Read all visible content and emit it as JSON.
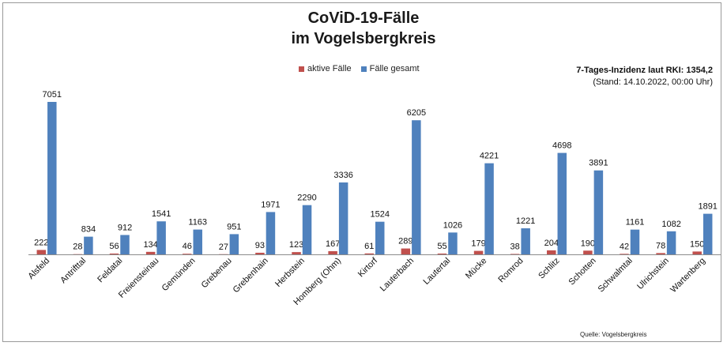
{
  "chart_data": {
    "type": "bar",
    "title": [
      "CoViD-19-Fälle",
      "im Vogelsbergkreis"
    ],
    "categories": [
      "Alsfeld",
      "Antrifttal",
      "Feldatal",
      "Freiensteinau",
      "Gemünden",
      "Grebenau",
      "Grebenhain",
      "Herbstein",
      "Homberg (Ohm)",
      "Kirtorf",
      "Lauterbach",
      "Lautertal",
      "Mücke",
      "Romrod",
      "Schlitz",
      "Schotten",
      "Schwalmtal",
      "Ulrichstein",
      "Wartenberg"
    ],
    "series": [
      {
        "name": "aktive Fälle",
        "color": "#c0504d",
        "values": [
          222,
          28,
          56,
          134,
          46,
          27,
          93,
          123,
          167,
          61,
          289,
          55,
          179,
          38,
          204,
          190,
          42,
          78,
          150
        ]
      },
      {
        "name": "Fälle gesamt",
        "color": "#4f81bd",
        "values": [
          7051,
          834,
          912,
          1541,
          1163,
          951,
          1971,
          2290,
          3336,
          1524,
          6205,
          1026,
          4221,
          1221,
          4698,
          3891,
          1161,
          1082,
          1891
        ]
      }
    ],
    "ylim": [
      0,
      7500
    ],
    "grid": false,
    "legend_position": "top-center"
  },
  "annotation": {
    "incidence": "7-Tages-Inzidenz laut RKI: 1354,2",
    "stand": "(Stand: 14.10.2022, 00:00 Uhr)"
  },
  "source": "Quelle: Vogelsbergkreis"
}
